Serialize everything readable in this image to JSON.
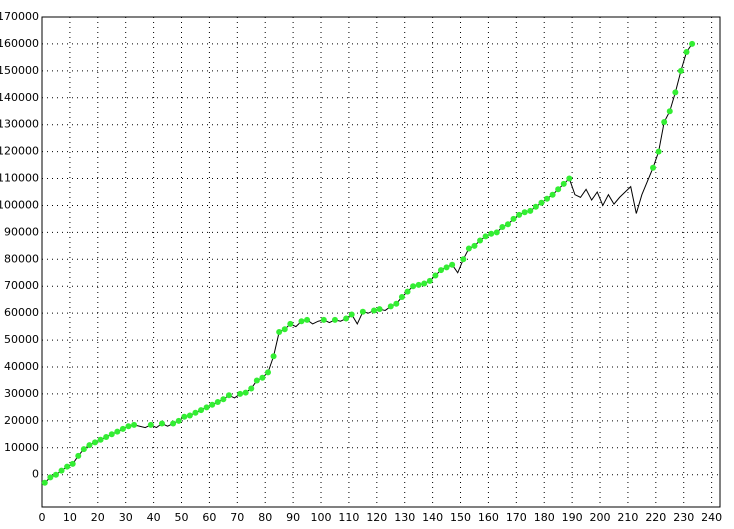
{
  "chart_data": {
    "type": "line",
    "x": [
      1,
      3,
      5,
      7,
      9,
      11,
      13,
      15,
      17,
      19,
      21,
      23,
      25,
      27,
      29,
      31,
      33,
      35,
      37,
      39,
      41,
      43,
      45,
      47,
      49,
      51,
      53,
      55,
      57,
      59,
      61,
      63,
      65,
      67,
      69,
      71,
      73,
      75,
      77,
      79,
      81,
      83,
      85,
      87,
      89,
      91,
      93,
      95,
      97,
      99,
      101,
      103,
      105,
      107,
      109,
      111,
      113,
      115,
      117,
      119,
      121,
      123,
      125,
      127,
      129,
      131,
      133,
      135,
      137,
      139,
      141,
      143,
      145,
      147,
      149,
      151,
      153,
      155,
      157,
      159,
      161,
      163,
      165,
      167,
      169,
      171,
      173,
      175,
      177,
      179,
      181,
      183,
      185,
      187,
      189,
      191,
      193,
      195,
      197,
      199,
      201,
      203,
      205,
      207,
      209,
      211,
      213,
      215,
      217,
      219,
      221,
      223,
      225,
      227,
      229,
      231,
      233
    ],
    "series": [
      {
        "color": "#000000",
        "marker_color": "#33ee33",
        "values": [
          -3000,
          -1000,
          0,
          1500,
          3000,
          4000,
          7000,
          9500,
          11000,
          12000,
          13000,
          14000,
          15000,
          16000,
          17000,
          18000,
          18500,
          18000,
          17500,
          18500,
          17500,
          19000,
          18000,
          19000,
          20000,
          21500,
          22000,
          23000,
          24000,
          25000,
          26000,
          27000,
          28000,
          29500,
          28500,
          30000,
          30500,
          32000,
          35000,
          36000,
          38000,
          44000,
          53000,
          54000,
          56000,
          55000,
          57000,
          57500,
          56000,
          57000,
          57500,
          56500,
          57500,
          57000,
          58000,
          59500,
          56000,
          60500,
          60000,
          61000,
          61500,
          61000,
          62500,
          63500,
          66000,
          68000,
          70000,
          70500,
          71000,
          72000,
          74000,
          76000,
          77000,
          78000,
          75000,
          80000,
          84000,
          85000,
          87000,
          88500,
          89500,
          90000,
          92000,
          93000,
          95000,
          96500,
          97500,
          98000,
          99500,
          101000,
          102500,
          104000,
          106000,
          108000,
          110000,
          104000,
          103000,
          106000,
          102000,
          105000,
          100000,
          104000,
          100500,
          103000,
          105000,
          107000,
          97000,
          104000,
          109000,
          114000,
          120000,
          131000,
          135000,
          142000,
          150000,
          157000,
          160000
        ]
      }
    ],
    "xlim": [
      0,
      243
    ],
    "ylim": [
      -12000,
      170000
    ],
    "xticks": [
      0,
      10,
      20,
      30,
      40,
      50,
      60,
      70,
      80,
      90,
      100,
      110,
      120,
      130,
      140,
      150,
      160,
      170,
      180,
      190,
      200,
      210,
      220,
      230,
      240
    ],
    "yticks": [
      0,
      10000,
      20000,
      30000,
      40000,
      50000,
      60000,
      70000,
      80000,
      90000,
      100000,
      110000,
      120000,
      130000,
      140000,
      150000,
      160000,
      170000
    ],
    "grid": true
  }
}
